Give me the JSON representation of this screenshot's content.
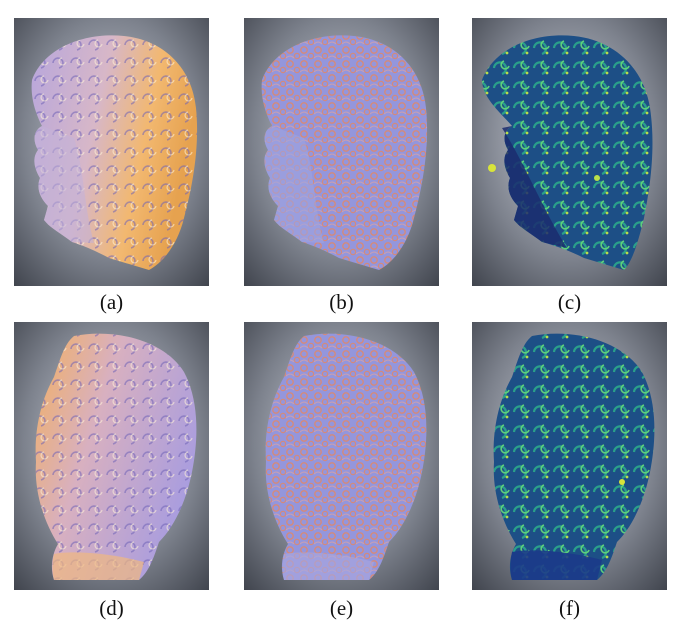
{
  "figure": {
    "panels": [
      {
        "id": "a",
        "caption": "(a)",
        "content": "shaded bust, side view"
      },
      {
        "id": "b",
        "caption": "(b)",
        "content": "curvature map, side view"
      },
      {
        "id": "c",
        "caption": "(c)",
        "content": "viridis heat map, side view"
      },
      {
        "id": "d",
        "caption": "(d)",
        "content": "shaded bust, back view"
      },
      {
        "id": "e",
        "caption": "(e)",
        "content": "curvature map, back view"
      },
      {
        "id": "f",
        "caption": "(f)",
        "content": "viridis heat map, back view"
      }
    ]
  },
  "colors": {
    "background_center": "#cfd3dc",
    "background_edge": "#3f434c",
    "shaded_lit": "#f2b870",
    "shaded_mid": "#b7a6dc",
    "shaded_dark": "#6e62b5",
    "curv_blue": "#8e90dc",
    "curv_red": "#d58a7a",
    "heat_dark": "#1b2c6e",
    "heat_mid": "#1f8a8a",
    "heat_bright": "#5fd07a",
    "heat_peak": "#d8e43a"
  }
}
